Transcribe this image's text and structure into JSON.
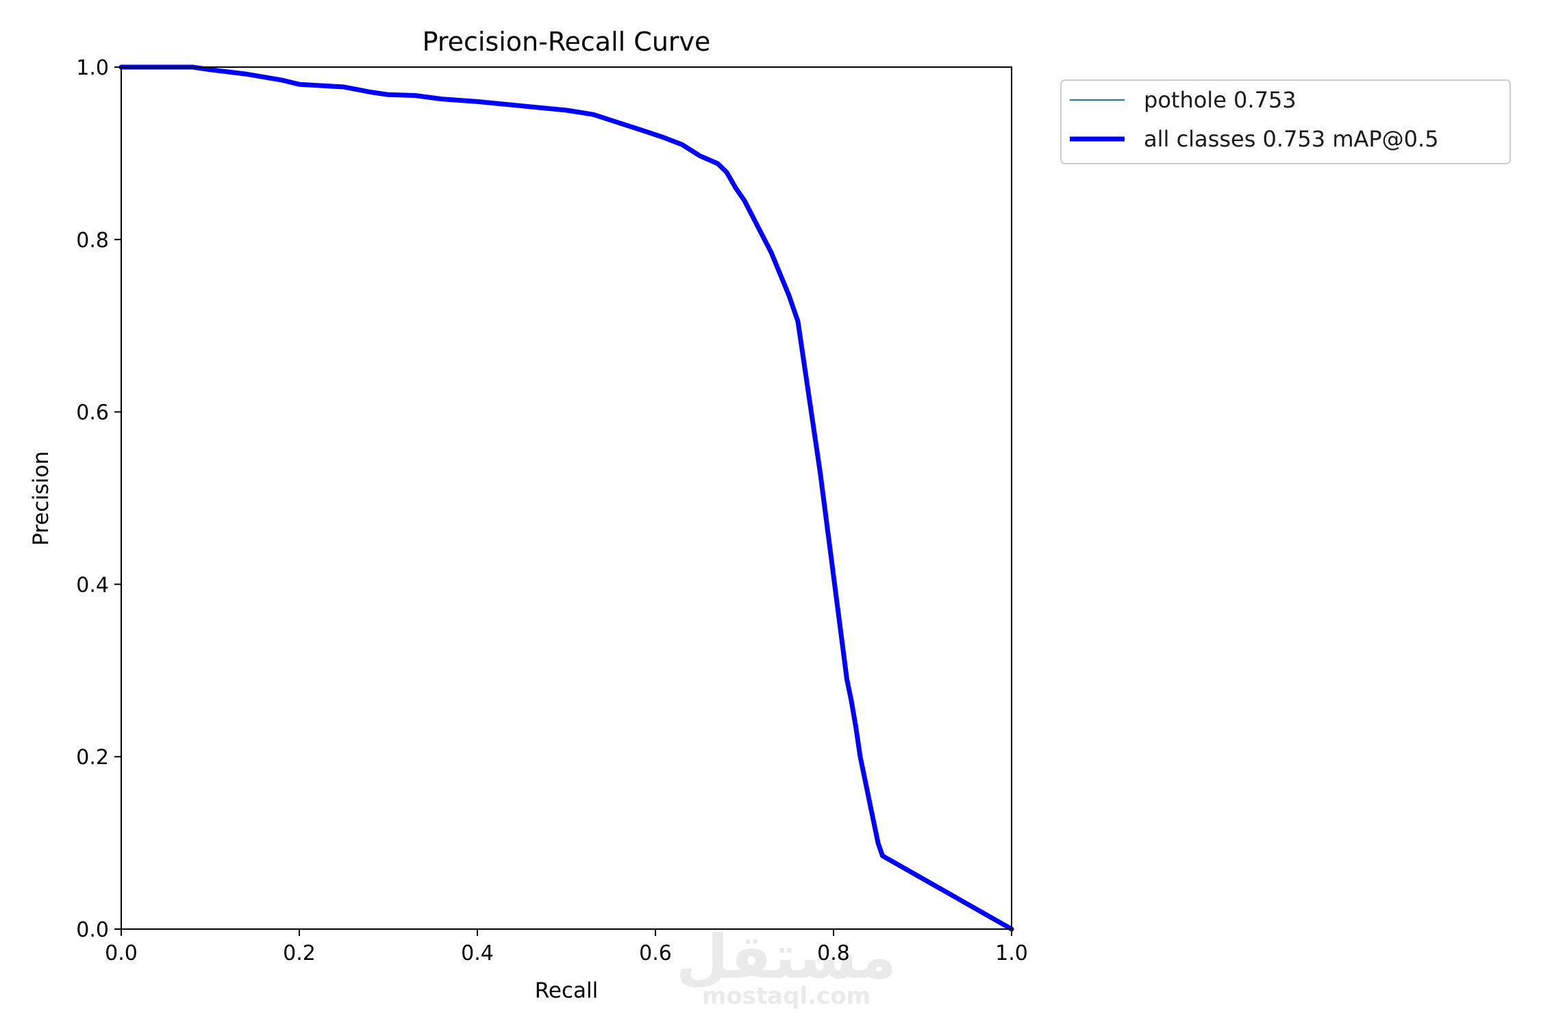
{
  "chart_data": {
    "type": "line",
    "title": "Precision-Recall Curve",
    "xlabel": "Recall",
    "ylabel": "Precision",
    "xlim": [
      0,
      1
    ],
    "ylim": [
      0,
      1
    ],
    "xticks": [
      "0.0",
      "0.2",
      "0.4",
      "0.6",
      "0.8",
      "1.0"
    ],
    "yticks": [
      "0.0",
      "0.2",
      "0.4",
      "0.6",
      "0.8",
      "1.0"
    ],
    "grid": false,
    "legend_position": "outside-top-right",
    "series": [
      {
        "name": "pothole 0.753",
        "color": "#1f77b4",
        "points": [
          [
            0.0,
            1.0
          ],
          [
            0.08,
            1.0
          ],
          [
            0.1,
            0.997
          ],
          [
            0.14,
            0.992
          ],
          [
            0.18,
            0.985
          ],
          [
            0.2,
            0.98
          ],
          [
            0.25,
            0.977
          ],
          [
            0.28,
            0.971
          ],
          [
            0.3,
            0.968
          ],
          [
            0.33,
            0.967
          ],
          [
            0.36,
            0.963
          ],
          [
            0.4,
            0.96
          ],
          [
            0.45,
            0.955
          ],
          [
            0.5,
            0.95
          ],
          [
            0.53,
            0.945
          ],
          [
            0.56,
            0.935
          ],
          [
            0.59,
            0.925
          ],
          [
            0.61,
            0.918
          ],
          [
            0.63,
            0.91
          ],
          [
            0.65,
            0.897
          ],
          [
            0.67,
            0.888
          ],
          [
            0.68,
            0.878
          ],
          [
            0.69,
            0.86
          ],
          [
            0.7,
            0.845
          ],
          [
            0.71,
            0.825
          ],
          [
            0.72,
            0.805
          ],
          [
            0.73,
            0.785
          ],
          [
            0.74,
            0.76
          ],
          [
            0.75,
            0.735
          ],
          [
            0.76,
            0.705
          ],
          [
            0.765,
            0.67
          ],
          [
            0.77,
            0.635
          ],
          [
            0.775,
            0.6
          ],
          [
            0.78,
            0.565
          ],
          [
            0.785,
            0.53
          ],
          [
            0.79,
            0.49
          ],
          [
            0.795,
            0.45
          ],
          [
            0.8,
            0.41
          ],
          [
            0.805,
            0.37
          ],
          [
            0.81,
            0.33
          ],
          [
            0.815,
            0.29
          ],
          [
            0.82,
            0.265
          ],
          [
            0.825,
            0.235
          ],
          [
            0.83,
            0.2
          ],
          [
            0.835,
            0.175
          ],
          [
            0.84,
            0.15
          ],
          [
            0.845,
            0.125
          ],
          [
            0.85,
            0.1
          ],
          [
            0.855,
            0.085
          ],
          [
            1.0,
            0.0
          ]
        ]
      },
      {
        "name": "all classes 0.753 mAP@0.5",
        "color": "#0000ff",
        "points": [
          [
            0.0,
            1.0
          ],
          [
            0.08,
            1.0
          ],
          [
            0.1,
            0.997
          ],
          [
            0.14,
            0.992
          ],
          [
            0.18,
            0.985
          ],
          [
            0.2,
            0.98
          ],
          [
            0.25,
            0.977
          ],
          [
            0.28,
            0.971
          ],
          [
            0.3,
            0.968
          ],
          [
            0.33,
            0.967
          ],
          [
            0.36,
            0.963
          ],
          [
            0.4,
            0.96
          ],
          [
            0.45,
            0.955
          ],
          [
            0.5,
            0.95
          ],
          [
            0.53,
            0.945
          ],
          [
            0.56,
            0.935
          ],
          [
            0.59,
            0.925
          ],
          [
            0.61,
            0.918
          ],
          [
            0.63,
            0.91
          ],
          [
            0.65,
            0.897
          ],
          [
            0.67,
            0.888
          ],
          [
            0.68,
            0.878
          ],
          [
            0.69,
            0.86
          ],
          [
            0.7,
            0.845
          ],
          [
            0.71,
            0.825
          ],
          [
            0.72,
            0.805
          ],
          [
            0.73,
            0.785
          ],
          [
            0.74,
            0.76
          ],
          [
            0.75,
            0.735
          ],
          [
            0.76,
            0.705
          ],
          [
            0.765,
            0.67
          ],
          [
            0.77,
            0.635
          ],
          [
            0.775,
            0.6
          ],
          [
            0.78,
            0.565
          ],
          [
            0.785,
            0.53
          ],
          [
            0.79,
            0.49
          ],
          [
            0.795,
            0.45
          ],
          [
            0.8,
            0.41
          ],
          [
            0.805,
            0.37
          ],
          [
            0.81,
            0.33
          ],
          [
            0.815,
            0.29
          ],
          [
            0.82,
            0.265
          ],
          [
            0.825,
            0.235
          ],
          [
            0.83,
            0.2
          ],
          [
            0.835,
            0.175
          ],
          [
            0.84,
            0.15
          ],
          [
            0.845,
            0.125
          ],
          [
            0.85,
            0.1
          ],
          [
            0.855,
            0.085
          ],
          [
            1.0,
            0.0
          ]
        ]
      }
    ]
  },
  "watermark": {
    "arabic": "مستقل",
    "latin": "mostaql.com"
  }
}
